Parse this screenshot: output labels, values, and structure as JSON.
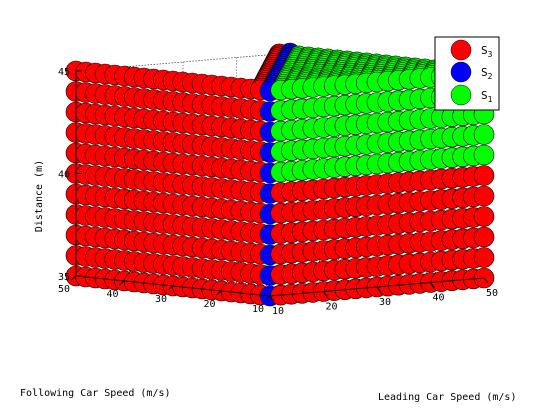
{
  "chart_data": {
    "type": "scatter",
    "title": "",
    "xlabel": "Leading Car Speed (m/s)",
    "ylabel": "Following Car Speed (m/s)",
    "zlabel": "Distance (m)",
    "x_ticks": [
      "10",
      "20",
      "30",
      "40",
      "50"
    ],
    "y_ticks": [
      "10",
      "20",
      "30",
      "40",
      "50"
    ],
    "z_ticks": [
      "35",
      "40",
      "45"
    ],
    "xlim": [
      10,
      50
    ],
    "ylim": [
      10,
      50
    ],
    "zlim": [
      35,
      45
    ],
    "grid": true,
    "legend_position": "top-right",
    "series": [
      {
        "name": "S",
        "sub": "3",
        "color": "#ff0000",
        "description": "states where following car is slower or distance large; upper slab region"
      },
      {
        "name": "S",
        "sub": "2",
        "color": "#0000ff",
        "description": "diagonal where leading speed equals following speed"
      },
      {
        "name": "S",
        "sub": "1",
        "color": "#00ff00",
        "description": "remaining states"
      }
    ],
    "series_rule": {
      "S2": "leading == following",
      "S3_front": "leading < following",
      "S3_side": "distance <= 40 and following <= 30",
      "S1": "otherwise"
    }
  }
}
